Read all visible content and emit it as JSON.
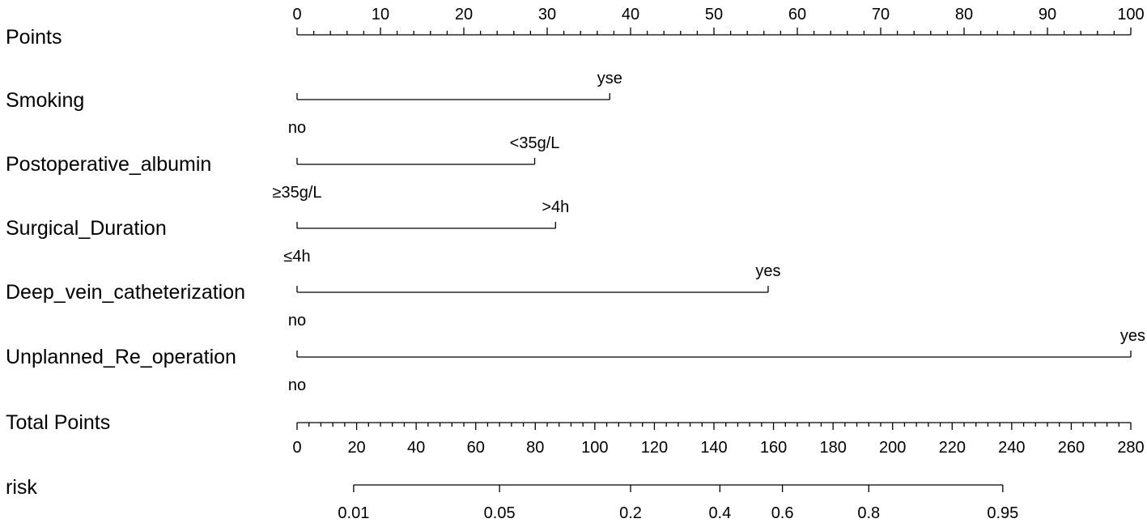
{
  "chart_data": {
    "type": "nomogram",
    "scales": {
      "points": {
        "label": "Points",
        "range": [
          0,
          100
        ],
        "tick_labels": [
          "0",
          "10",
          "20",
          "30",
          "40",
          "50",
          "60",
          "70",
          "80",
          "90",
          "100"
        ]
      },
      "total_points": {
        "label": "Total Points",
        "range": [
          0,
          280
        ],
        "tick_labels": [
          "0",
          "20",
          "40",
          "60",
          "80",
          "100",
          "120",
          "140",
          "160",
          "180",
          "200",
          "220",
          "240",
          "260",
          "280"
        ]
      },
      "risk": {
        "label": "risk",
        "total_points_range": [
          19,
          237
        ],
        "tick_labels": [
          {
            "label": "0.01",
            "total_points": 19
          },
          {
            "label": "0.05",
            "total_points": 68
          },
          {
            "label": "0.2",
            "total_points": 112
          },
          {
            "label": "0.4",
            "total_points": 142
          },
          {
            "label": "0.6",
            "total_points": 163
          },
          {
            "label": "0.8",
            "total_points": 192
          },
          {
            "label": "0.95",
            "total_points": 237
          }
        ]
      }
    },
    "variables": [
      {
        "name": "Smoking",
        "levels": [
          {
            "label": "no",
            "points": 0
          },
          {
            "label": "yse",
            "points": 37.5
          }
        ]
      },
      {
        "name": "Postoperative_albumin",
        "levels": [
          {
            "label": "≥35g/L",
            "points": 0
          },
          {
            "label": "<35g/L",
            "points": 28.5
          }
        ]
      },
      {
        "name": "Surgical_Duration",
        "levels": [
          {
            "label": "≤4h",
            "points": 0
          },
          {
            "label": ">4h",
            "points": 31
          }
        ]
      },
      {
        "name": "Deep_vein_catheterization",
        "levels": [
          {
            "label": "no",
            "points": 0
          },
          {
            "label": "yes",
            "points": 56.5
          }
        ]
      },
      {
        "name": "Unplanned_Re_operation",
        "levels": [
          {
            "label": "no",
            "points": 0
          },
          {
            "label": "yes",
            "points": 100
          }
        ]
      }
    ]
  }
}
